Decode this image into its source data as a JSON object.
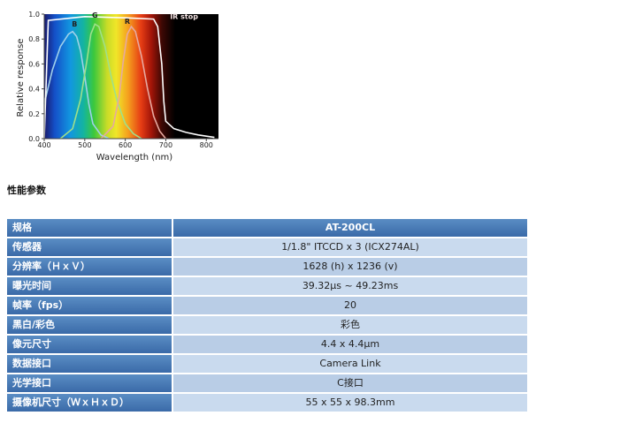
{
  "chart_data": {
    "type": "line",
    "xlabel": "Wavelength (nm)",
    "ylabel": "Relative response",
    "xlim": [
      400,
      830
    ],
    "ylim": [
      0,
      1.0
    ],
    "x_ticks": [
      "400",
      "500",
      "600",
      "700",
      "800"
    ],
    "y_ticks": [
      "0.0",
      "0.2",
      "0.4",
      "0.6",
      "0.8",
      "1.0"
    ],
    "background": "visible spectrum gradient",
    "annotations": [
      "IR stop"
    ],
    "series": [
      {
        "name": "B",
        "color": "#9fd0ea",
        "x": [
          400,
          420,
          440,
          460,
          470,
          480,
          490,
          500,
          510,
          520,
          540,
          560
        ],
        "y": [
          0.28,
          0.55,
          0.74,
          0.84,
          0.86,
          0.82,
          0.7,
          0.5,
          0.28,
          0.12,
          0.03,
          0.0
        ]
      },
      {
        "name": "G",
        "color": "#9fe08a",
        "x": [
          440,
          470,
          490,
          505,
          515,
          525,
          535,
          550,
          565,
          580,
          600,
          620,
          640
        ],
        "y": [
          0.0,
          0.08,
          0.32,
          0.62,
          0.84,
          0.92,
          0.9,
          0.74,
          0.5,
          0.3,
          0.12,
          0.04,
          0.0
        ]
      },
      {
        "name": "R",
        "color": "#e6a9a0",
        "x": [
          540,
          570,
          585,
          595,
          605,
          615,
          625,
          640,
          655,
          670,
          685,
          700
        ],
        "y": [
          0.0,
          0.1,
          0.34,
          0.62,
          0.84,
          0.9,
          0.86,
          0.66,
          0.4,
          0.18,
          0.06,
          0.0
        ]
      },
      {
        "name": "IR stop",
        "color": "#ffffff",
        "x": [
          400,
          410,
          500,
          600,
          670,
          680,
          690,
          695,
          700,
          720,
          750,
          780,
          800,
          820
        ],
        "y": [
          0.0,
          0.95,
          0.98,
          0.97,
          0.96,
          0.9,
          0.6,
          0.3,
          0.14,
          0.08,
          0.05,
          0.03,
          0.02,
          0.01
        ]
      }
    ]
  },
  "section_title": "性能参数",
  "table": {
    "header": {
      "label": "规格",
      "value": "AT-200CL"
    },
    "rows": [
      {
        "label": "传感器",
        "value": "1/1.8\" ITCCD x 3 (ICX274AL)"
      },
      {
        "label": "分辨率（ＨｘＶ）",
        "value": "1628 (h) x 1236 (v)"
      },
      {
        "label": "曝光时间",
        "value": "39.32μs ~ 49.23ms"
      },
      {
        "label": "帧率（fps）",
        "value": "20"
      },
      {
        "label": "黑白/彩色",
        "value": "彩色"
      },
      {
        "label": "像元尺寸",
        "value": "4.4 x 4.4μm"
      },
      {
        "label": "数据接口",
        "value": "Camera Link"
      },
      {
        "label": "光学接口",
        "value": "C接口"
      },
      {
        "label": "摄像机尺寸（ＷｘＨｘＤ）",
        "value": "55 x 55 x 98.3mm"
      }
    ]
  }
}
